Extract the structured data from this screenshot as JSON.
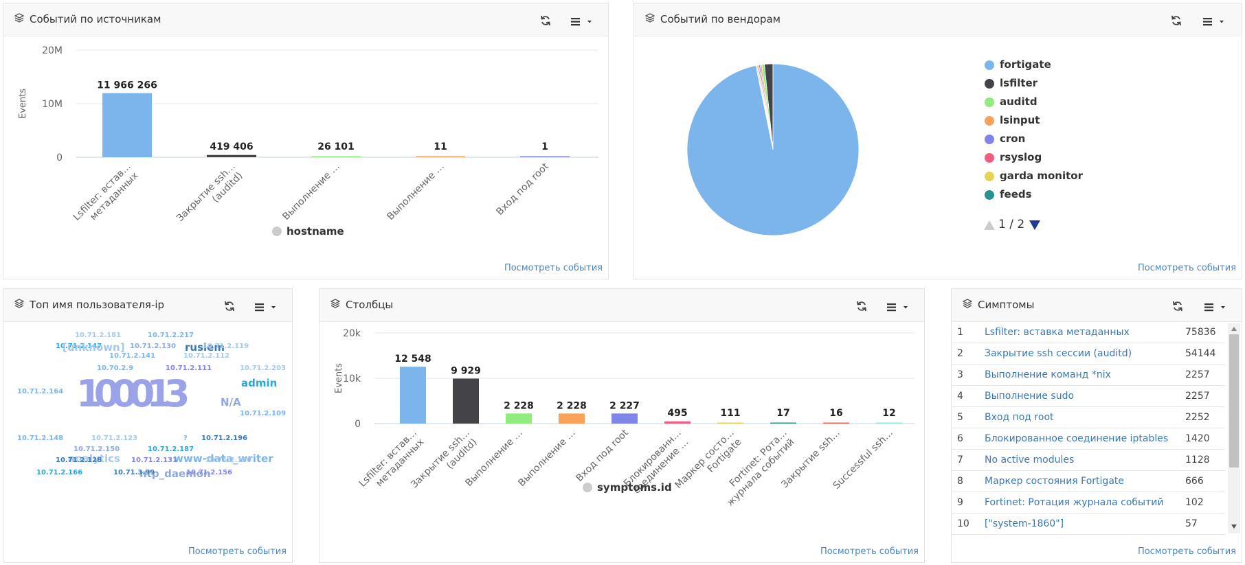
{
  "panels": {
    "sources": {
      "title": "Событий по источникам",
      "link": "Посмотреть события"
    },
    "vendors": {
      "title": "Событий по вендорам",
      "link": "Посмотреть события"
    },
    "users": {
      "title": "Топ имя пользователя-ip",
      "link": "Посмотреть события"
    },
    "columns": {
      "title": "Столбцы",
      "link": "Посмотреть события"
    },
    "symptoms": {
      "title": "Симптомы",
      "link": "Посмотреть события"
    }
  },
  "colors": {
    "accent_link": "#4a87c0",
    "bar_blue": "#7cb5ec",
    "bar_dark": "#434348",
    "bar_green": "#90ed7d",
    "bar_orange": "#f7a35c",
    "bar_purple": "#8085e9",
    "bar_pink": "#f15c80"
  },
  "chart_data": [
    {
      "id": "sources",
      "type": "bar",
      "ylabel": "Events",
      "yticks": [
        "20M",
        "10M",
        "0"
      ],
      "ylim": [
        0,
        20000000
      ],
      "categories": [
        "Lsfilter: встав… метаданных",
        "Закрытие ssh… (auditd)",
        "Выполнение …",
        "Выполнение …",
        "Вход под root"
      ],
      "values": [
        11966266,
        419406,
        26101,
        11,
        1
      ],
      "data_labels": [
        "11 966 266",
        "419 406",
        "26 101",
        "11",
        "1"
      ],
      "legend": "hostname",
      "grid": true
    },
    {
      "id": "vendors",
      "type": "pie",
      "legend_position": "right",
      "legend": [
        "fortigate",
        "lsfilter",
        "auditd",
        "lsinput",
        "cron",
        "rsyslog",
        "garda monitor",
        "feeds"
      ],
      "legend_colors": [
        "#7cb5ec",
        "#434348",
        "#90ed7d",
        "#f7a35c",
        "#8085e9",
        "#f15c80",
        "#e4d354",
        "#2b908f"
      ],
      "values": [
        96.8,
        1.6,
        0.5,
        0.3,
        0.25,
        0.2,
        0.2,
        0.15
      ],
      "pager": "1 / 2"
    },
    {
      "id": "columns",
      "type": "bar",
      "ylabel": "Events",
      "yticks": [
        "20k",
        "10k",
        "0"
      ],
      "ylim": [
        0,
        20000
      ],
      "categories": [
        "Lsfilter: встав… метаданных",
        "Закрытие ssh… (auditd)",
        "Выполнение …",
        "Выполнение …",
        "Вход под root",
        "Блокированн… соединение …",
        "Маркер состо… Fortigate",
        "Fortinet: Рота… журнала событий",
        "Закрытие ssh…",
        "Successful ssh…"
      ],
      "values": [
        12548,
        9929,
        2228,
        2228,
        2227,
        495,
        111,
        17,
        16,
        12
      ],
      "data_labels": [
        "12 548",
        "9 929",
        "2 228",
        "2 228",
        "2 227",
        "495",
        "111",
        "17",
        "16",
        "12"
      ],
      "legend": "symptoms.id",
      "grid": true
    }
  ],
  "word_cloud": [
    {
      "text": "10.71.2.181",
      "color": "#a6c9ea",
      "size": 10
    },
    {
      "text": "10.71.2.217",
      "color": "#7cb5ec",
      "size": 10
    },
    {
      "text": "10.71.2.147",
      "color": "#2aa7d9",
      "size": 10
    },
    {
      "text": "[unknown]",
      "color": "#a6c9ea",
      "size": 15
    },
    {
      "text": "10.71.2.130",
      "color": "#8fa9dd",
      "size": 10
    },
    {
      "text": "rusiem",
      "color": "#3a78b5",
      "size": 15
    },
    {
      "text": "10.71.2.119",
      "color": "#a6c9ea",
      "size": 10
    },
    {
      "text": "10.71.2.141",
      "color": "#7cb5ec",
      "size": 10
    },
    {
      "text": "10.71.2.112",
      "color": "#a6c9ea",
      "size": 10
    },
    {
      "text": "10.70.2.9",
      "color": "#7cb5ec",
      "size": 10
    },
    {
      "text": "10.71.2.111",
      "color": "#8085e9",
      "size": 10
    },
    {
      "text": "10.71.2.203",
      "color": "#a6c9ea",
      "size": 10
    },
    {
      "text": "admin",
      "color": "#2aa7d9",
      "size": 15
    },
    {
      "text": "10.71.2.164",
      "color": "#7cb5ec",
      "size": 10
    },
    {
      "text": "100013",
      "color": "#9aa3e8",
      "size": 54
    },
    {
      "text": "N/A",
      "color": "#8fa9dd",
      "size": 15
    },
    {
      "text": "10.71.2.109",
      "color": "#7cb5ec",
      "size": 10
    },
    {
      "text": "10.71.2.148",
      "color": "#7cb5ec",
      "size": 10
    },
    {
      "text": "10.71.2.123",
      "color": "#a6c9ea",
      "size": 10
    },
    {
      "text": "?",
      "color": "#7cb5ec",
      "size": 10
    },
    {
      "text": "10.71.2.196",
      "color": "#3a78b5",
      "size": 10
    },
    {
      "text": "10.71.2.150",
      "color": "#8fa9dd",
      "size": 10
    },
    {
      "text": "10.71.2.187",
      "color": "#2aa7d9",
      "size": 10
    },
    {
      "text": "analytics",
      "color": "#a6c9ea",
      "size": 15
    },
    {
      "text": "www-data_writer",
      "color": "#7cb5ec",
      "size": 15
    },
    {
      "text": "10.71.2.128",
      "color": "#3a78b5",
      "size": 10
    },
    {
      "text": "10.71.2.131",
      "color": "#8085e9",
      "size": 10
    },
    {
      "text": "10.71.2.120",
      "color": "#a6c9ea",
      "size": 10
    },
    {
      "text": "ntp_daemon",
      "color": "#8fa9dd",
      "size": 15
    },
    {
      "text": "10.71.2.166",
      "color": "#2aa7d9",
      "size": 10
    },
    {
      "text": "10.71.3.99",
      "color": "#3a78b5",
      "size": 10
    },
    {
      "text": "10.71.2.156",
      "color": "#8085e9",
      "size": 10
    }
  ],
  "symptoms": [
    {
      "n": "1",
      "name": "Lsfilter: вставка метаданных",
      "count": "75836"
    },
    {
      "n": "2",
      "name": "Закрытие ssh сессии (auditd)",
      "count": "54144"
    },
    {
      "n": "3",
      "name": "Выполнение команд *nix",
      "count": "2257"
    },
    {
      "n": "4",
      "name": "Выполнение sudo",
      "count": "2257"
    },
    {
      "n": "5",
      "name": "Вход под root",
      "count": "2252"
    },
    {
      "n": "6",
      "name": "Блокированное соединение iptables",
      "count": "1420"
    },
    {
      "n": "7",
      "name": "No active modules",
      "count": "1128"
    },
    {
      "n": "8",
      "name": "Маркер состояния Fortigate",
      "count": "666"
    },
    {
      "n": "9",
      "name": "Fortinet: Ротация журнала событий",
      "count": "102"
    },
    {
      "n": "10",
      "name": "[\"system-1860\"]",
      "count": "57"
    }
  ]
}
